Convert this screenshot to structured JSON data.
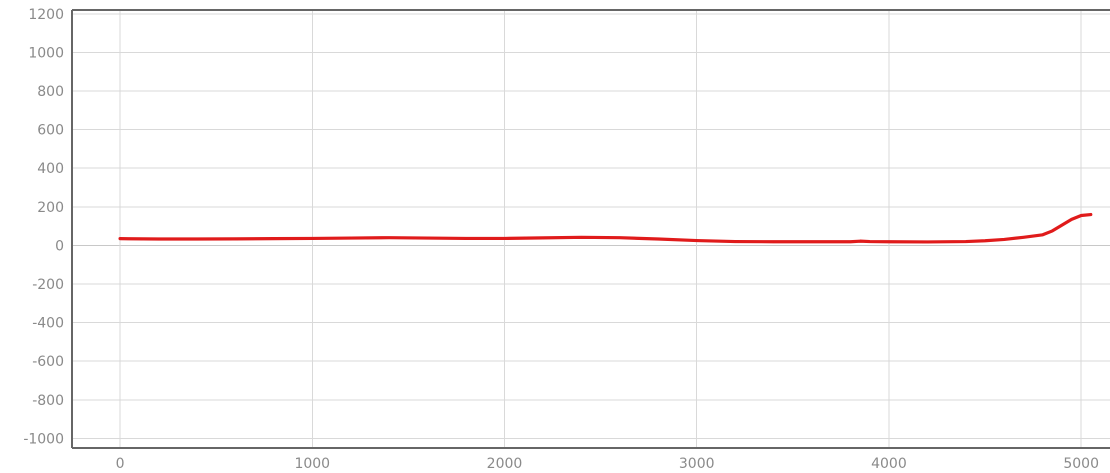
{
  "chart_data": {
    "type": "line",
    "title": "",
    "xlabel": "",
    "ylabel": "",
    "xlim": [
      -250,
      5150
    ],
    "ylim": [
      -1050,
      1220
    ],
    "x_ticks": [
      0,
      1000,
      2000,
      3000,
      4000,
      5000
    ],
    "y_ticks": [
      1200,
      1000,
      800,
      600,
      400,
      200,
      0,
      -200,
      -400,
      -600,
      -800,
      -1000
    ],
    "x_tick_labels": [
      "0",
      "1000",
      "2000",
      "3000",
      "4000",
      "5000"
    ],
    "y_tick_labels": [
      "1200",
      "1000",
      "800",
      "600",
      "400",
      "200",
      "0",
      "-200",
      "-400",
      "-600",
      "-800",
      "-1000"
    ],
    "grid": true,
    "legend": "none",
    "series": [
      {
        "color": "#e01b1b",
        "x": [
          0,
          200,
          400,
          600,
          800,
          1000,
          1200,
          1400,
          1600,
          1800,
          2000,
          2200,
          2400,
          2600,
          2800,
          3000,
          3200,
          3400,
          3600,
          3800,
          3850,
          3900,
          4000,
          4200,
          4400,
          4500,
          4600,
          4700,
          4800,
          4850,
          4900,
          4950,
          5000,
          5050
        ],
        "values": [
          35,
          33,
          33,
          34,
          35,
          36,
          38,
          40,
          38,
          36,
          36,
          39,
          42,
          40,
          33,
          25,
          20,
          19,
          19,
          19,
          22,
          20,
          19,
          18,
          20,
          24,
          31,
          42,
          55,
          75,
          105,
          135,
          155,
          160
        ]
      }
    ]
  }
}
